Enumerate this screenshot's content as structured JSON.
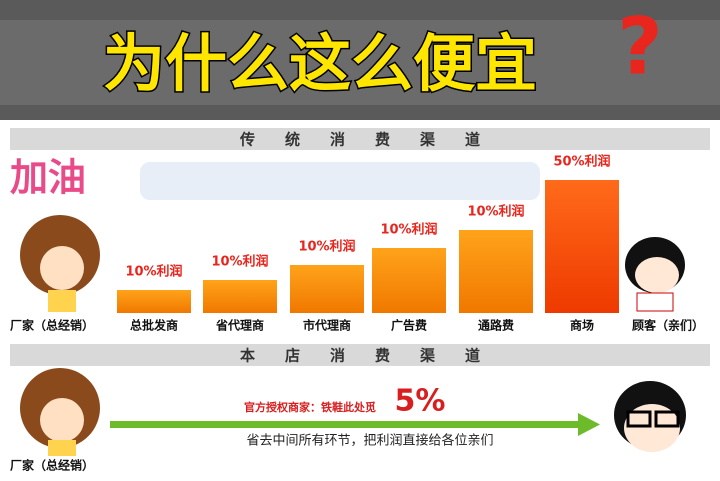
{
  "header": {
    "title": "为什么这么便宜",
    "mark": "?"
  },
  "section1": {
    "title": "传　　统　　消　　费　　渠　　道",
    "decor": "加油",
    "source": "厂家（总经销）",
    "stages": [
      {
        "label": "总批发商",
        "profit": "10%利润"
      },
      {
        "label": "省代理商",
        "profit": "10%利润"
      },
      {
        "label": "市代理商",
        "profit": "10%利润"
      },
      {
        "label": "广告费",
        "profit": "10%利润"
      },
      {
        "label": "通路费",
        "profit": "10%利润"
      },
      {
        "label": "商场",
        "profit": "50%利润"
      }
    ],
    "customer": "顾客（亲们）"
  },
  "section2": {
    "title": "本　　店　　消　　费　　渠　　道",
    "seller": "官方授权商家：铁鞋此处觅",
    "profit": "5%",
    "note": "省去中间所有环节，把利润直接给各位亲们",
    "source": "厂家（总经销）"
  }
}
